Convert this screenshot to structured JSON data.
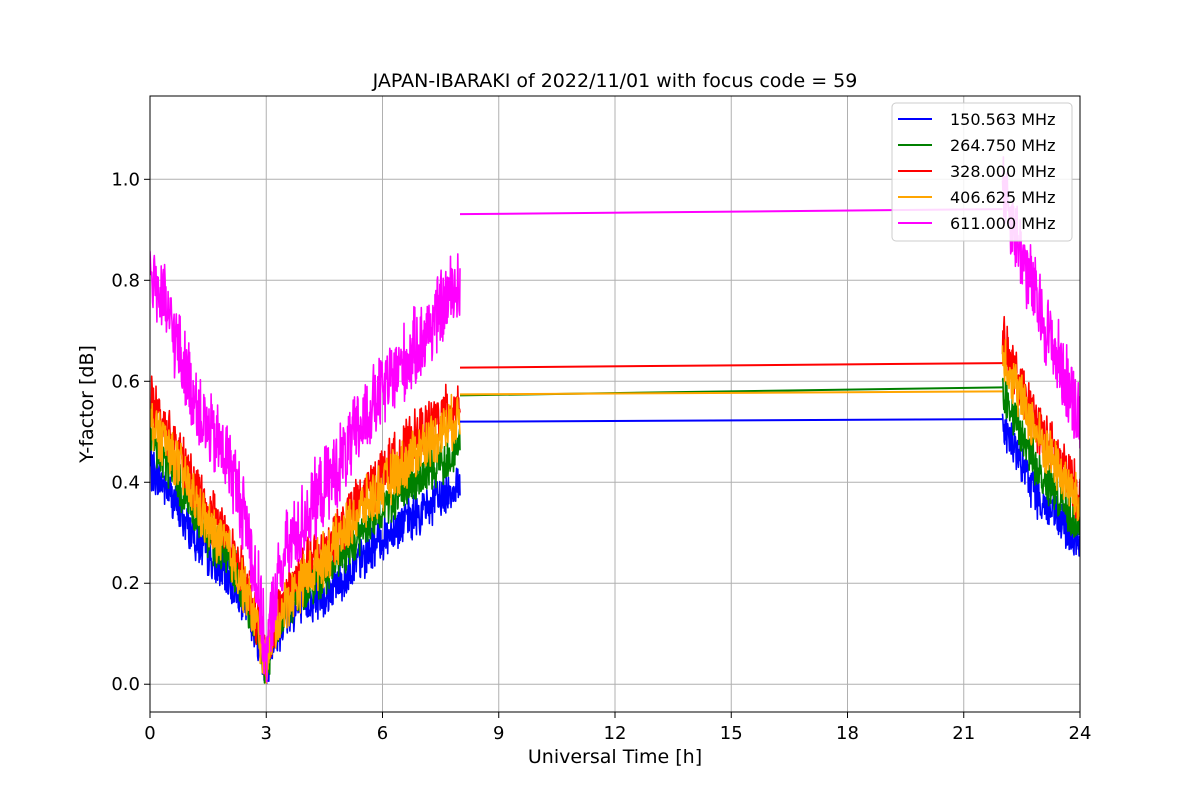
{
  "chart_data": {
    "type": "line",
    "title": "JAPAN-IBARAKI of 2022/11/01 with focus code = 59",
    "xlabel": "Universal Time [h]",
    "ylabel": "Y-factor [dB]",
    "xlim": [
      0,
      24
    ],
    "ylim": [
      -0.055,
      1.165
    ],
    "xticks": [
      0,
      3,
      6,
      9,
      12,
      15,
      18,
      21,
      24
    ],
    "yticks": [
      0.0,
      0.2,
      0.4,
      0.6,
      0.8,
      1.0
    ],
    "xtick_labels": [
      "0",
      "3",
      "6",
      "9",
      "12",
      "15",
      "18",
      "21",
      "24"
    ],
    "ytick_labels": [
      "0.0",
      "0.2",
      "0.4",
      "0.6",
      "0.8",
      "1.0"
    ],
    "grid": true,
    "legend_position": "upper-right",
    "series": [
      {
        "name": "150.563 MHz",
        "color": "#0000ff",
        "x": [
          0,
          0.5,
          1,
          1.5,
          2,
          2.5,
          2.8,
          3,
          3.2,
          3.5,
          4,
          4.5,
          5,
          5.5,
          6,
          6.5,
          7,
          7.5,
          8,
          22,
          22.5,
          23,
          23.5,
          24
        ],
        "y": [
          0.43,
          0.38,
          0.31,
          0.25,
          0.21,
          0.15,
          0.08,
          0.03,
          0.09,
          0.13,
          0.16,
          0.18,
          0.21,
          0.25,
          0.29,
          0.32,
          0.34,
          0.37,
          0.4,
          0.52,
          0.43,
          0.36,
          0.32,
          0.27
        ],
        "amplitude": 0.05
      },
      {
        "name": "264.750 MHz",
        "color": "#008000",
        "x": [
          0,
          0.5,
          1,
          1.5,
          2,
          2.5,
          2.8,
          3,
          3.2,
          3.5,
          4,
          4.5,
          5,
          5.5,
          6,
          6.5,
          7,
          7.5,
          8,
          22,
          22.5,
          23,
          23.5,
          24
        ],
        "y": [
          0.48,
          0.43,
          0.36,
          0.29,
          0.25,
          0.17,
          0.09,
          0.03,
          0.1,
          0.15,
          0.19,
          0.22,
          0.26,
          0.3,
          0.35,
          0.38,
          0.41,
          0.44,
          0.47,
          0.58,
          0.49,
          0.41,
          0.37,
          0.31
        ],
        "amplitude": 0.05
      },
      {
        "name": "328.000 MHz",
        "color": "#ff0000",
        "x": [
          0,
          0.5,
          1,
          1.5,
          2,
          2.5,
          2.8,
          3,
          3.2,
          3.5,
          4,
          4.5,
          5,
          5.5,
          6,
          6.5,
          7,
          7.5,
          8,
          22,
          22.5,
          23,
          23.5,
          24
        ],
        "y": [
          0.56,
          0.5,
          0.42,
          0.34,
          0.3,
          0.2,
          0.12,
          0.05,
          0.12,
          0.18,
          0.23,
          0.27,
          0.32,
          0.37,
          0.42,
          0.46,
          0.5,
          0.53,
          0.56,
          0.68,
          0.58,
          0.5,
          0.44,
          0.37
        ],
        "amplitude": 0.06
      },
      {
        "name": "406.625 MHz",
        "color": "#ffa500",
        "x": [
          0,
          0.5,
          1,
          1.5,
          2,
          2.5,
          2.8,
          3,
          3.2,
          3.5,
          4,
          4.5,
          5,
          5.5,
          6,
          6.5,
          7,
          7.5,
          8,
          22,
          22.5,
          23,
          23.5,
          24
        ],
        "y": [
          0.52,
          0.47,
          0.39,
          0.31,
          0.27,
          0.18,
          0.1,
          0.04,
          0.11,
          0.16,
          0.21,
          0.25,
          0.3,
          0.35,
          0.39,
          0.43,
          0.47,
          0.5,
          0.53,
          0.66,
          0.56,
          0.48,
          0.42,
          0.35
        ],
        "amplitude": 0.06
      },
      {
        "name": "611.000 MHz",
        "color": "#ff00ff",
        "x": [
          0,
          0.5,
          1,
          1.5,
          2,
          2.5,
          2.8,
          3,
          3.2,
          3.5,
          4,
          4.5,
          5,
          5.5,
          6,
          6.5,
          7,
          7.5,
          8,
          22,
          22.5,
          23,
          23.5,
          24
        ],
        "y": [
          0.82,
          0.72,
          0.6,
          0.5,
          0.45,
          0.32,
          0.18,
          0.05,
          0.17,
          0.26,
          0.33,
          0.39,
          0.45,
          0.52,
          0.58,
          0.63,
          0.68,
          0.74,
          0.8,
          0.99,
          0.85,
          0.73,
          0.63,
          0.53
        ],
        "amplitude": 0.09
      }
    ],
    "gap_lines": [
      {
        "series": "150.563 MHz",
        "x": [
          8,
          22
        ],
        "y": [
          0.52,
          0.525
        ]
      },
      {
        "series": "264.750 MHz",
        "x": [
          8,
          22
        ],
        "y": [
          0.572,
          0.588
        ]
      },
      {
        "series": "328.000 MHz",
        "x": [
          8,
          22
        ],
        "y": [
          0.627,
          0.636
        ]
      },
      {
        "series": "406.625 MHz",
        "x": [
          8,
          22
        ],
        "y": [
          0.574,
          0.58
        ]
      },
      {
        "series": "611.000 MHz",
        "x": [
          8,
          22
        ],
        "y": [
          0.931,
          0.941
        ]
      }
    ]
  }
}
